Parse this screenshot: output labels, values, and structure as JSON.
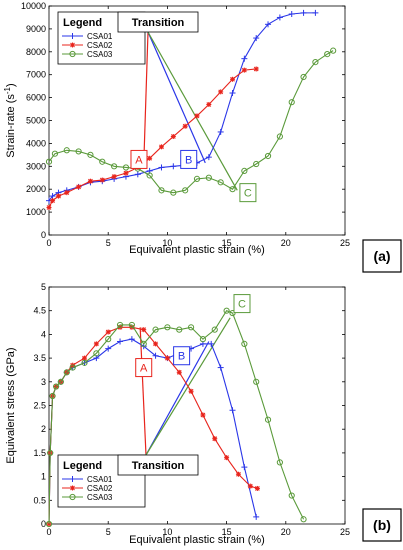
{
  "chart_data": [
    {
      "type": "line",
      "panel_label": "(a)",
      "xlabel": "Equivalent plastic strain (%)",
      "ylabel_main": "Strain-rate (s",
      "ylabel_sup": "-1",
      "ylabel_end": ")",
      "xlim": [
        0,
        25
      ],
      "ylim": [
        0,
        10000
      ],
      "xticks": [
        0,
        5,
        10,
        15,
        20,
        25
      ],
      "yticks": [
        0,
        1000,
        2000,
        3000,
        4000,
        5000,
        6000,
        7000,
        8000,
        9000,
        10000
      ],
      "grid": false,
      "legend": {
        "title": "Legend",
        "placement": "top-left"
      },
      "transition_label": "Transition",
      "series": [
        {
          "name": "CSA01",
          "color": "#2a36e8",
          "marker": "plus",
          "x": [
            0,
            0.3,
            0.8,
            1.5,
            2.5,
            3.5,
            4.5,
            5.5,
            6.5,
            7.5,
            8.5,
            9.5,
            10.5,
            11.5,
            12.5,
            13.5,
            14.5,
            15.5,
            16.5,
            17.5,
            18.5,
            19.5,
            20.5,
            21.5,
            22.5
          ],
          "y": [
            1500,
            1700,
            1850,
            1950,
            2100,
            2300,
            2350,
            2450,
            2550,
            2650,
            2800,
            2950,
            3000,
            3050,
            3150,
            3400,
            4500,
            6200,
            7700,
            8600,
            9200,
            9500,
            9650,
            9700,
            9700
          ]
        },
        {
          "name": "CSA02",
          "color": "#e8241c",
          "marker": "asterisk",
          "x": [
            0,
            0.3,
            0.8,
            1.5,
            2.5,
            3.5,
            4.5,
            5.5,
            6.5,
            7.5,
            8.5,
            9.5,
            10.5,
            11.5,
            12.5,
            13.5,
            14.5,
            15.5,
            16.5,
            17.5
          ],
          "y": [
            1200,
            1500,
            1700,
            1850,
            2100,
            2350,
            2400,
            2550,
            2700,
            2950,
            3350,
            3850,
            4300,
            4750,
            5200,
            5700,
            6250,
            6800,
            7200,
            7250
          ]
        },
        {
          "name": "CSA03",
          "color": "#5a9a3a",
          "marker": "circle",
          "x": [
            0,
            0.5,
            1.5,
            2.5,
            3.5,
            4.5,
            5.5,
            6.5,
            7.5,
            8.5,
            9.5,
            10.5,
            11.5,
            12.5,
            13.5,
            14.5,
            15.5,
            16.5,
            17.5,
            18.5,
            19.5,
            20.5,
            21.5,
            22.5,
            23.5,
            24
          ],
          "y": [
            3200,
            3550,
            3700,
            3650,
            3500,
            3200,
            3000,
            2950,
            2900,
            2600,
            1950,
            1850,
            1950,
            2450,
            2500,
            2300,
            2000,
            2800,
            3100,
            3450,
            4300,
            5800,
            6900,
            7550,
            7900,
            8050
          ]
        }
      ],
      "annotations": [
        {
          "text": "A",
          "color": "#e8241c",
          "x": 7.6,
          "y": 3300
        },
        {
          "text": "B",
          "color": "#2a36e8",
          "x": 11.8,
          "y": 3300
        },
        {
          "text": "C",
          "color": "#5a9a3a",
          "x": 16.8,
          "y": 1850
        }
      ]
    },
    {
      "type": "line",
      "panel_label": "(b)",
      "xlabel": "Equivalent plastic strain (%)",
      "ylabel": "Equivalent stress (GPa)",
      "xlim": [
        0,
        25
      ],
      "ylim": [
        0,
        5
      ],
      "xticks": [
        0,
        5,
        10,
        15,
        20,
        25
      ],
      "yticks": [
        0,
        0.5,
        1,
        1.5,
        2,
        2.5,
        3,
        3.5,
        4,
        4.5,
        5
      ],
      "grid": false,
      "legend": {
        "title": "Legend",
        "placement": "bottom-left"
      },
      "transition_label": "Transition",
      "series": [
        {
          "name": "CSA01",
          "color": "#2a36e8",
          "marker": "plus",
          "x": [
            0,
            0.1,
            0.3,
            0.6,
            1,
            1.5,
            2,
            3,
            4,
            5,
            6,
            7,
            8,
            9,
            10,
            11,
            12,
            13,
            13.7,
            14.5,
            15.5,
            16.5,
            17.5
          ],
          "y": [
            0,
            1.5,
            2.7,
            2.9,
            3.0,
            3.2,
            3.3,
            3.4,
            3.5,
            3.7,
            3.85,
            3.9,
            3.75,
            3.55,
            3.5,
            3.6,
            3.7,
            3.8,
            3.8,
            3.3,
            2.4,
            1.2,
            0.15
          ]
        },
        {
          "name": "CSA02",
          "color": "#e8241c",
          "marker": "asterisk",
          "x": [
            0,
            0.1,
            0.3,
            0.6,
            1,
            1.5,
            2,
            3,
            4,
            5,
            6,
            7,
            8,
            9,
            10,
            11,
            12,
            13,
            14,
            15,
            16,
            17,
            17.6
          ],
          "y": [
            0,
            1.5,
            2.7,
            2.9,
            3.0,
            3.2,
            3.35,
            3.5,
            3.8,
            4.05,
            4.15,
            4.15,
            4.1,
            3.8,
            3.5,
            3.2,
            2.8,
            2.3,
            1.8,
            1.4,
            1.05,
            0.8,
            0.75
          ]
        },
        {
          "name": "CSA03",
          "color": "#5a9a3a",
          "marker": "circle",
          "x": [
            0,
            0.1,
            0.3,
            0.6,
            1,
            1.5,
            2,
            3,
            4,
            5,
            6,
            7,
            8,
            9,
            10,
            11,
            12,
            13,
            14,
            15,
            15.5,
            16.5,
            17.5,
            18.5,
            19.5,
            20.5,
            21.5
          ],
          "y": [
            0,
            1.5,
            2.7,
            2.9,
            3.0,
            3.2,
            3.3,
            3.4,
            3.6,
            3.9,
            4.2,
            4.2,
            3.8,
            4.1,
            4.15,
            4.1,
            4.15,
            3.9,
            4.1,
            4.5,
            4.45,
            3.8,
            3.0,
            2.2,
            1.3,
            0.6,
            0.1
          ]
        }
      ],
      "annotations": [
        {
          "text": "A",
          "color": "#e8241c",
          "x": 8.0,
          "y": 3.3
        },
        {
          "text": "B",
          "color": "#2a36e8",
          "x": 11.2,
          "y": 3.55
        },
        {
          "text": "C",
          "color": "#5a9a3a",
          "x": 16.3,
          "y": 4.65
        }
      ]
    }
  ]
}
